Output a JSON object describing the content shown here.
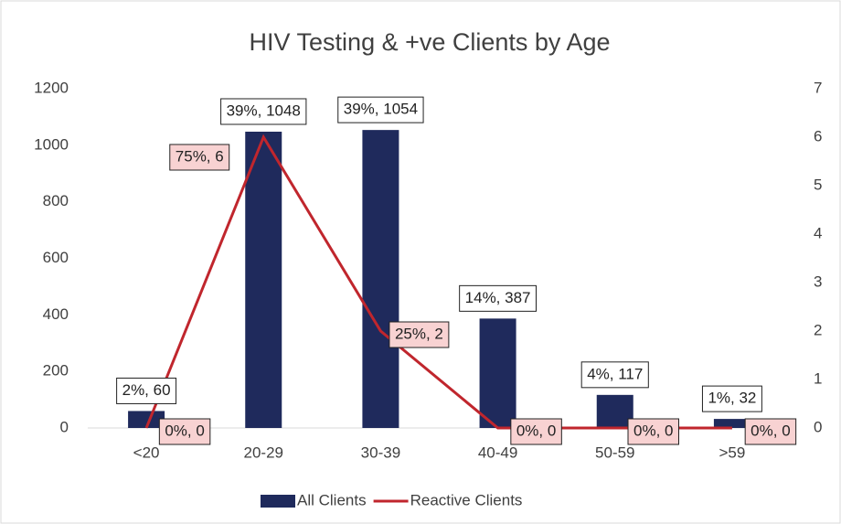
{
  "chart_data": {
    "type": "combo",
    "title": "HIV Testing & +ve Clients by Age",
    "categories": [
      "<20",
      "20-29",
      "30-39",
      "40-49",
      "50-59",
      ">59"
    ],
    "series": [
      {
        "name": "All Clients",
        "type": "bar",
        "color": "#1f2a5c",
        "values": [
          60,
          1048,
          1054,
          387,
          117,
          32
        ],
        "value_labels": [
          "2%, 60",
          "39%, 1048",
          "39%, 1054",
          "14%, 387",
          "4%, 117",
          "1%, 32"
        ]
      },
      {
        "name": "Reactive Clients",
        "type": "line",
        "axis": "y2",
        "color": "#c0262d",
        "values": [
          0,
          6,
          2,
          0,
          0,
          0
        ],
        "value_labels": [
          "0%, 0",
          "75%, 6",
          "25%, 2",
          "0%, 0",
          "0%, 0",
          "0%, 0"
        ]
      }
    ],
    "ylim": [
      0,
      1200
    ],
    "yticks": [
      0,
      200,
      400,
      600,
      800,
      1000,
      1200
    ],
    "y2lim": [
      0,
      7
    ],
    "y2ticks": [
      0,
      1,
      2,
      3,
      4,
      5,
      6,
      7
    ],
    "legend": "bottom"
  }
}
